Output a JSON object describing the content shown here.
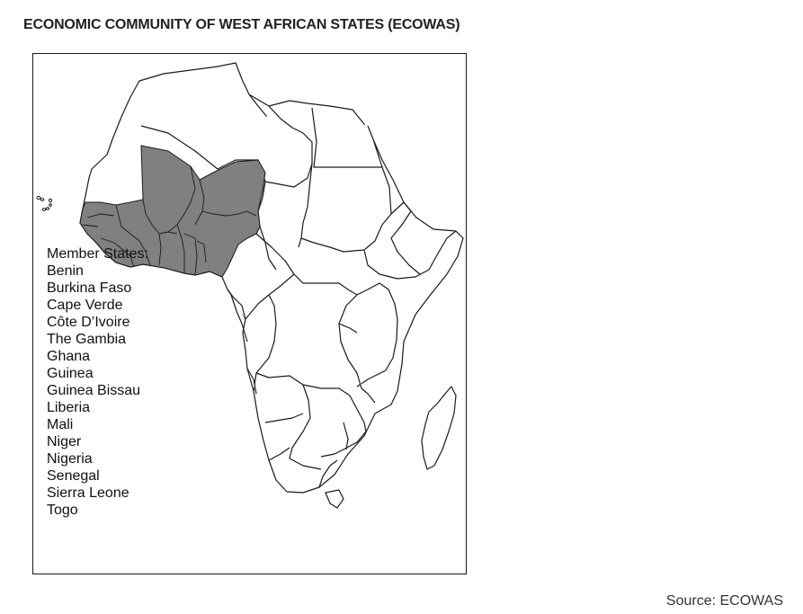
{
  "title": "ECONOMIC COMMUNITY OF WEST AFRICAN STATES (ECOWAS)",
  "legend": {
    "heading": "Member States:",
    "members": [
      "Benin",
      "Burkina Faso",
      "Cape Verde",
      "Côte D’Ivoire",
      "The Gambia",
      "Ghana",
      "Guinea",
      "Guinea Bissau",
      "Liberia",
      "Mali",
      "Niger",
      "Nigeria",
      "Senegal",
      "Sierra Leone",
      "Togo"
    ]
  },
  "source": "Source: ECOWAS",
  "colors": {
    "member_fill": "#808080",
    "nonmember_fill": "#ffffff",
    "border": "#1a1a1a"
  }
}
